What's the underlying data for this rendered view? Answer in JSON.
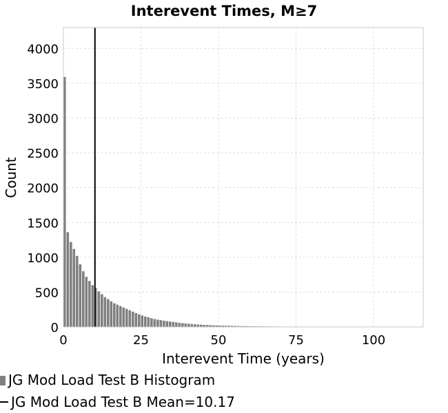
{
  "chart_data": {
    "type": "bar",
    "title": "Interevent Times, M≥7",
    "xlabel": "Interevent Time (years)",
    "ylabel": "Count",
    "xlim": [
      0,
      116
    ],
    "ylim": [
      0,
      4300
    ],
    "xticks": [
      "0",
      "25",
      "50",
      "75",
      "100"
    ],
    "yticks": [
      "0",
      "500",
      "1000",
      "1500",
      "2000",
      "2500",
      "3000",
      "3500",
      "4000"
    ],
    "grid": true,
    "legend_position": "bottom-left",
    "bar_color": "#808080",
    "bin_width": 1,
    "series": [
      {
        "name": "JG Mod Load Test B Histogram",
        "x": [
          0.5,
          1.5,
          2.5,
          3.5,
          4.5,
          5.5,
          6.5,
          7.5,
          8.5,
          9.5,
          10.5,
          11.5,
          12.5,
          13.5,
          14.5,
          15.5,
          16.5,
          17.5,
          18.5,
          19.5,
          20.5,
          21.5,
          22.5,
          23.5,
          24.5,
          25.5,
          26.5,
          27.5,
          28.5,
          29.5,
          30.5,
          31.5,
          32.5,
          33.5,
          34.5,
          35.5,
          36.5,
          37.5,
          38.5,
          39.5,
          40.5,
          41.5,
          42.5,
          43.5,
          44.5,
          45.5,
          46.5,
          47.5,
          48.5,
          49.5,
          50.5,
          51.5,
          52.5,
          53.5,
          54.5,
          55.5,
          56.5,
          57.5,
          58.5,
          59.5,
          60.5,
          61.5,
          62.5,
          63.5,
          64.5,
          65.5,
          66.5,
          67.5,
          68.5,
          69.5,
          70.5,
          71.5,
          72.5,
          73.5,
          74.5,
          75.5,
          76.5,
          77.5,
          78.5,
          79.5,
          80.5,
          81.5,
          82.5,
          83.5,
          84.5,
          85.5,
          86.5,
          87.5,
          88.5,
          89.5,
          90.5,
          91.5,
          92.5,
          93.5,
          94.5,
          95.5,
          96.5,
          97.5,
          98.5,
          99.5,
          100.5,
          101.5,
          102.5,
          103.5,
          104.5,
          105.5,
          106.5,
          107.5,
          108.5,
          109.5
        ],
        "values": [
          3590,
          1360,
          1220,
          1120,
          1020,
          900,
          800,
          720,
          660,
          600,
          560,
          510,
          470,
          430,
          400,
          370,
          340,
          320,
          300,
          280,
          260,
          240,
          220,
          200,
          180,
          165,
          150,
          140,
          125,
          115,
          105,
          98,
          90,
          84,
          78,
          72,
          66,
          60,
          55,
          50,
          46,
          42,
          39,
          36,
          33,
          30,
          28,
          26,
          24,
          22,
          20,
          19,
          18,
          17,
          16,
          15,
          14,
          13,
          12,
          11,
          10,
          10,
          9,
          9,
          8,
          8,
          7,
          7,
          6,
          6,
          6,
          5,
          5,
          5,
          4,
          4,
          4,
          4,
          3,
          3,
          3,
          3,
          3,
          3,
          2,
          2,
          2,
          2,
          2,
          2,
          2,
          2,
          2,
          2,
          2,
          1,
          1,
          1,
          1,
          1,
          1,
          1,
          1,
          1,
          1,
          1,
          1,
          1,
          1,
          1
        ]
      },
      {
        "name": "JG Mod Load Test B Mean=10.17",
        "x": [
          10.17,
          10.17
        ],
        "values": [
          0,
          4300
        ]
      }
    ]
  }
}
